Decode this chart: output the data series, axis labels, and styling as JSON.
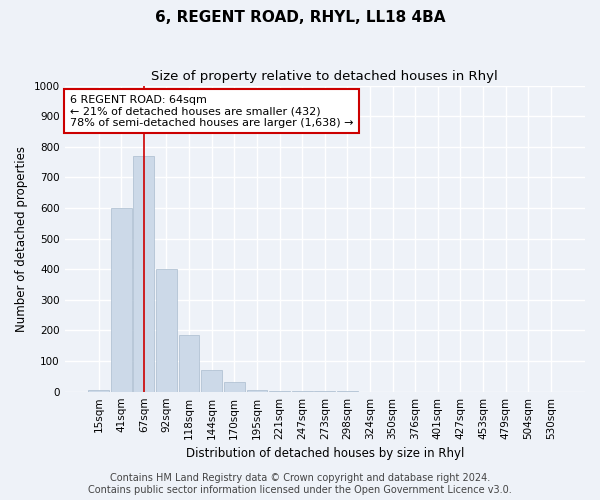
{
  "title1": "6, REGENT ROAD, RHYL, LL18 4BA",
  "title2": "Size of property relative to detached houses in Rhyl",
  "xlabel": "Distribution of detached houses by size in Rhyl",
  "ylabel": "Number of detached properties",
  "categories": [
    "15sqm",
    "41sqm",
    "67sqm",
    "92sqm",
    "118sqm",
    "144sqm",
    "170sqm",
    "195sqm",
    "221sqm",
    "247sqm",
    "273sqm",
    "298sqm",
    "324sqm",
    "350sqm",
    "376sqm",
    "401sqm",
    "427sqm",
    "453sqm",
    "479sqm",
    "504sqm",
    "530sqm"
  ],
  "values": [
    5,
    600,
    770,
    400,
    185,
    70,
    30,
    5,
    3,
    3,
    3,
    3,
    0,
    0,
    0,
    0,
    0,
    0,
    0,
    0,
    0
  ],
  "bar_color": "#ccd9e8",
  "bar_edge_color": "#aabcce",
  "red_line_index": 2,
  "annotation_line1": "6 REGENT ROAD: 64sqm",
  "annotation_line2": "← 21% of detached houses are smaller (432)",
  "annotation_line3": "78% of semi-detached houses are larger (1,638) →",
  "annotation_box_color": "#ffffff",
  "annotation_border_color": "#cc0000",
  "ylim": [
    0,
    1000
  ],
  "yticks": [
    0,
    100,
    200,
    300,
    400,
    500,
    600,
    700,
    800,
    900,
    1000
  ],
  "footer1": "Contains HM Land Registry data © Crown copyright and database right 2024.",
  "footer2": "Contains public sector information licensed under the Open Government Licence v3.0.",
  "bg_color": "#eef2f8",
  "plot_bg_color": "#eef2f8",
  "grid_color": "#ffffff",
  "title_fontsize": 11,
  "subtitle_fontsize": 9.5,
  "label_fontsize": 8.5,
  "tick_fontsize": 7.5,
  "footer_fontsize": 7,
  "annotation_fontsize": 8
}
